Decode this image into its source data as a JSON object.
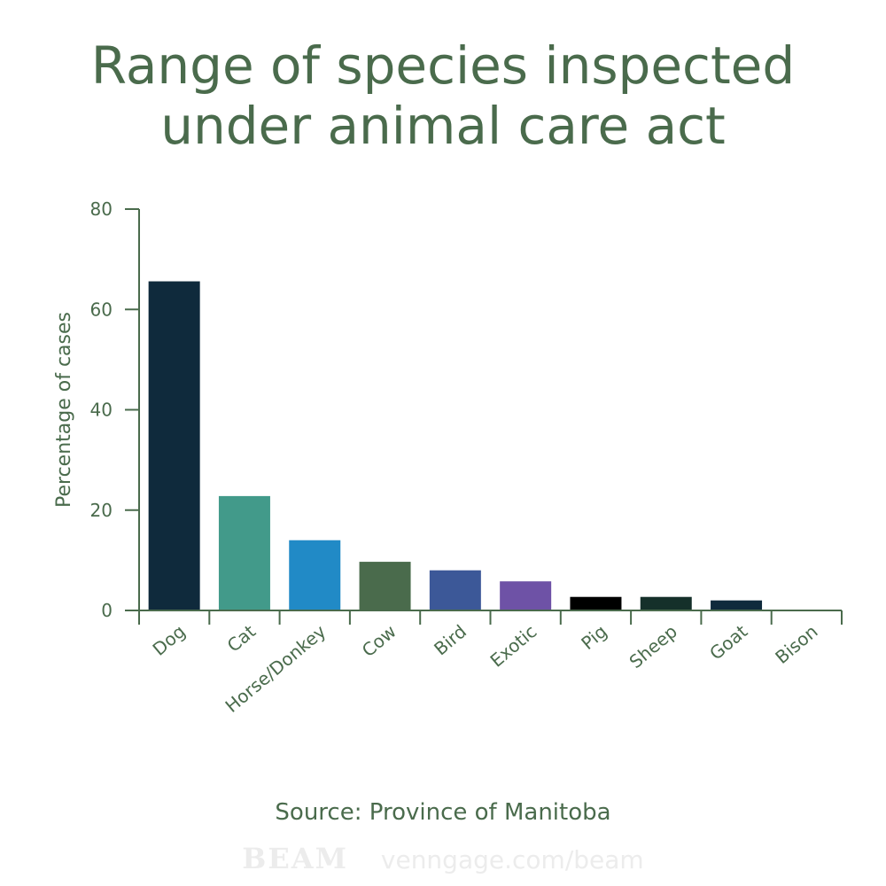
{
  "title": {
    "line1": "Range of species inspected",
    "line2": "under animal care act"
  },
  "source": "Source: Province of Manitoba",
  "footer": {
    "brand": "BEAM",
    "url": "venngage.com/beam"
  },
  "chart_data": {
    "type": "bar",
    "title": "Range of species inspected under animal care act",
    "xlabel": "",
    "ylabel": "Percentage of cases",
    "ylim": [
      0,
      80
    ],
    "yticks": [
      0,
      20,
      40,
      60,
      80
    ],
    "grid": false,
    "categories": [
      "Dog",
      "Cat",
      "Horse/Donkey",
      "Cow",
      "Bird",
      "Exotic",
      "Pig",
      "Sheep",
      "Goat",
      "Bison"
    ],
    "values": [
      65.6,
      22.8,
      14.0,
      9.7,
      8.0,
      5.8,
      2.7,
      2.7,
      2.0,
      0
    ],
    "colors": [
      "#0f2a3c",
      "#429a8a",
      "#218ac6",
      "#4a6b4c",
      "#3c5898",
      "#6e52a6",
      "#000000",
      "#15302a",
      "#0f2a3c",
      "#0f2a3c"
    ],
    "axis_color": "#4a6b4c"
  }
}
